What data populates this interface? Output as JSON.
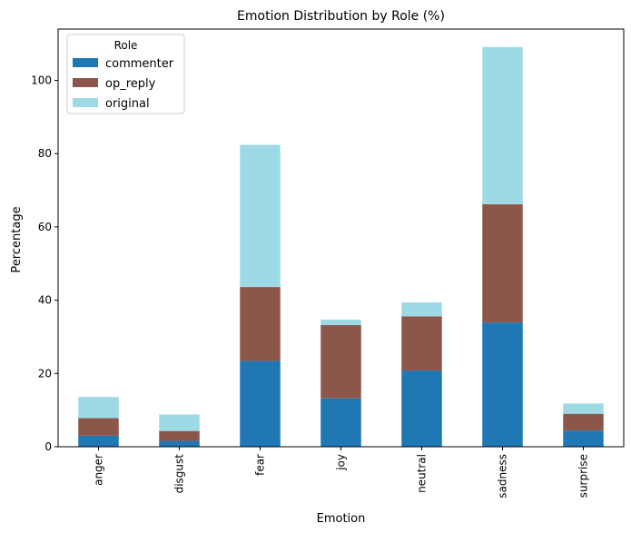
{
  "chart_data": {
    "type": "bar",
    "stacked": true,
    "title": "Emotion Distribution by Role (%)",
    "xlabel": "Emotion",
    "ylabel": "Percentage",
    "categories": [
      "anger",
      "disgust",
      "fear",
      "joy",
      "neutral",
      "sadness",
      "surprise"
    ],
    "series": [
      {
        "name": "commenter",
        "color": "#1f77b4",
        "values": [
          3.0,
          1.6,
          23.4,
          13.2,
          20.8,
          33.9,
          4.4
        ]
      },
      {
        "name": "op_reply",
        "color": "#8c564b",
        "values": [
          4.8,
          2.7,
          20.2,
          20.0,
          14.8,
          32.3,
          4.6
        ]
      },
      {
        "name": "original",
        "color": "#9edae5",
        "values": [
          5.8,
          4.5,
          38.8,
          1.5,
          3.8,
          42.9,
          2.8
        ]
      }
    ],
    "ylim": [
      0,
      114
    ],
    "yticks": [
      0,
      20,
      40,
      60,
      80,
      100
    ],
    "grid": false,
    "legend": {
      "title": "Role",
      "position": "top-left"
    }
  }
}
